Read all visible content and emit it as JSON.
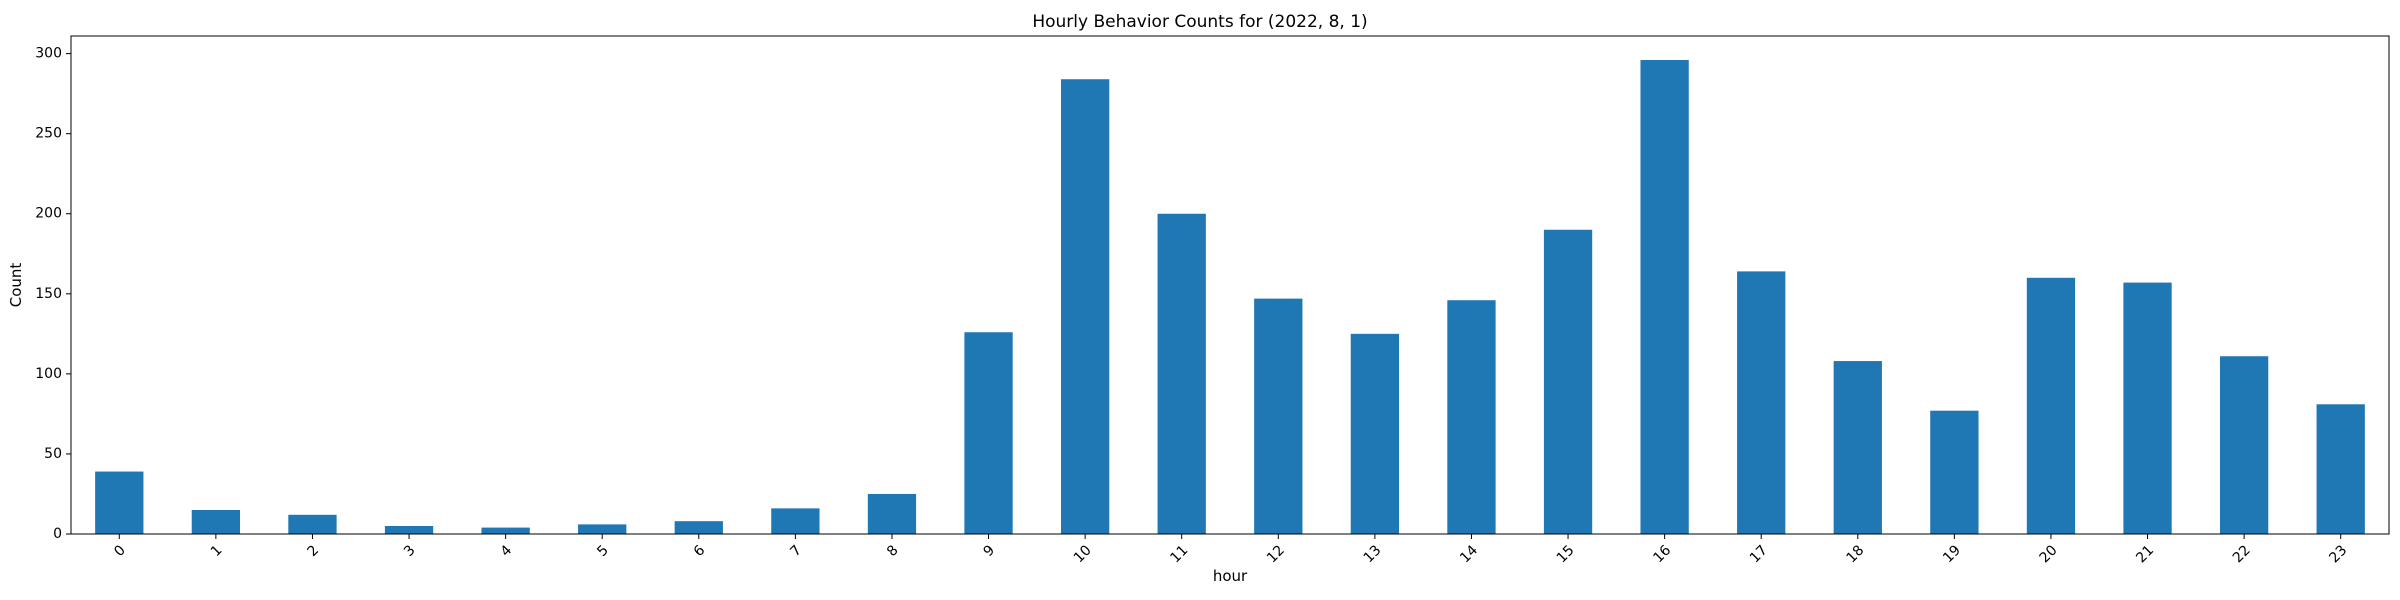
{
  "chart_data": {
    "type": "bar",
    "title": "Hourly Behavior Counts for (2022, 8, 1)",
    "xlabel": "hour",
    "ylabel": "Count",
    "categories": [
      "0",
      "1",
      "2",
      "3",
      "4",
      "5",
      "6",
      "7",
      "8",
      "9",
      "10",
      "11",
      "12",
      "13",
      "14",
      "15",
      "16",
      "17",
      "18",
      "19",
      "20",
      "21",
      "22",
      "23"
    ],
    "values": [
      39,
      15,
      12,
      5,
      4,
      6,
      8,
      16,
      25,
      126,
      284,
      200,
      147,
      125,
      146,
      190,
      296,
      164,
      108,
      77,
      160,
      157,
      111,
      81
    ],
    "ylim": [
      0,
      311
    ],
    "yticks": [
      0,
      50,
      100,
      150,
      200,
      250,
      300
    ],
    "grid": false,
    "bar_color": "#1f77b4",
    "x_tick_rotation": -45
  }
}
